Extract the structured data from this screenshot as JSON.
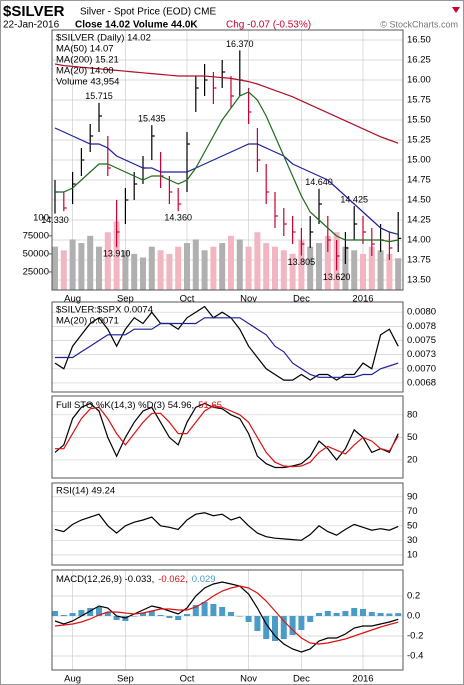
{
  "chart_data": [
    {
      "type": "ohlc",
      "title": "$SILVER",
      "subtitle": "Silver - Spot Price (EOD) CME",
      "date": "22-Jan-2016",
      "quote": "Close 14.02 Volume 44.0K",
      "change": "Chg -0.07 (-0.53%)",
      "credit": "© StockCharts.com",
      "categories": [
        null,
        null,
        "Aug",
        null,
        null,
        null,
        null,
        null,
        "Sep",
        null,
        null,
        null,
        null,
        null,
        null,
        "Oct",
        null,
        null,
        null,
        null,
        null,
        null,
        "Nov",
        null,
        null,
        null,
        null,
        null,
        "Dec",
        null,
        null,
        null,
        null,
        null,
        null,
        "2016",
        null,
        null,
        null,
        null
      ],
      "ylim": [
        13.375,
        16.625
      ],
      "yticks": [
        {
          "value": 13.5,
          "label": "13.50"
        },
        13.75,
        {
          "value": 14,
          "label": "14.00"
        },
        14.25,
        {
          "value": 14.5,
          "label": "14.50"
        },
        14.75,
        {
          "value": 15,
          "label": "15.00"
        },
        15.25,
        {
          "value": 15.5,
          "label": "15.50"
        },
        15.75,
        {
          "value": 16,
          "label": "16.00"
        },
        16.25,
        {
          "value": 16.5,
          "label": "16.50"
        }
      ],
      "y2lim": [
        0,
        360000
      ],
      "y2ticks": [
        25000,
        50000,
        75000,
        {
          "value": 100000,
          "label": "100"
        }
      ],
      "grid": true,
      "series": [
        {
          "name": "$SILVER (Daily) 14.02",
          "type": "ohlc",
          "color": "#000000",
          "down_color": "#cc0033",
          "high": [
            14.75,
            14.6,
            14.85,
            15.15,
            15.45,
            15.715,
            15.3,
            14.5,
            14.65,
            14.85,
            15.05,
            15.435,
            15.1,
            14.8,
            14.65,
            15.35,
            16.05,
            16.2,
            16.1,
            16.25,
            16.05,
            16.37,
            15.9,
            15.4,
            14.95,
            14.6,
            14.4,
            14.3,
            14.15,
            14.3,
            14.64,
            14.3,
            14.0,
            14.1,
            14.425,
            14.3,
            14.15,
            14.2,
            14.1,
            14.35
          ],
          "low": [
            14.33,
            14.36,
            14.45,
            14.8,
            15.1,
            15.35,
            14.8,
            13.91,
            14.2,
            14.5,
            14.7,
            15.0,
            14.65,
            14.45,
            14.36,
            14.6,
            15.6,
            15.8,
            15.7,
            15.9,
            15.65,
            15.8,
            15.45,
            14.85,
            14.45,
            14.15,
            14.05,
            13.95,
            13.805,
            13.9,
            14.2,
            13.85,
            13.62,
            13.7,
            14.0,
            13.95,
            13.8,
            13.85,
            13.75,
            13.85
          ],
          "close": [
            14.6,
            14.4,
            14.7,
            15.0,
            15.3,
            15.55,
            14.9,
            14.1,
            14.5,
            14.7,
            14.9,
            15.3,
            14.8,
            14.6,
            14.45,
            15.2,
            15.9,
            16.0,
            15.9,
            16.1,
            15.8,
            16.0,
            15.6,
            15.0,
            14.6,
            14.3,
            14.2,
            14.1,
            13.95,
            14.1,
            14.45,
            14.0,
            13.8,
            13.9,
            14.2,
            14.1,
            13.95,
            14.0,
            13.9,
            14.02
          ],
          "high_labels": [
            null,
            null,
            null,
            null,
            null,
            "15.715",
            null,
            null,
            null,
            null,
            null,
            "15.435",
            null,
            null,
            null,
            null,
            null,
            null,
            null,
            null,
            null,
            "16.370",
            null,
            null,
            null,
            null,
            null,
            null,
            null,
            null,
            "14.640",
            null,
            null,
            null,
            "14.425",
            null,
            null,
            null,
            null,
            null
          ],
          "low_labels": [
            "14.330",
            null,
            null,
            null,
            null,
            null,
            null,
            "13.910",
            null,
            null,
            null,
            null,
            null,
            null,
            "14.360",
            null,
            null,
            null,
            null,
            null,
            null,
            null,
            null,
            null,
            null,
            null,
            null,
            null,
            "13.805",
            null,
            null,
            null,
            "13.620",
            null,
            null,
            null,
            null,
            null,
            null,
            null
          ]
        },
        {
          "name": "MA(50) 14.07",
          "type": "line",
          "color": "#1f1f9a",
          "values": [
            15.4,
            15.35,
            15.3,
            15.25,
            15.2,
            15.2,
            15.15,
            15.05,
            15.0,
            14.95,
            14.9,
            14.9,
            14.85,
            14.85,
            14.85,
            14.85,
            14.9,
            14.95,
            15.0,
            15.05,
            15.1,
            15.15,
            15.2,
            15.2,
            15.15,
            15.1,
            15.05,
            14.95,
            14.9,
            14.85,
            14.8,
            14.75,
            14.65,
            14.55,
            14.45,
            14.35,
            14.25,
            14.15,
            14.1,
            14.07
          ]
        },
        {
          "name": "MA(200) 15.21",
          "type": "line",
          "color": "#b0102a",
          "values": [
            16.2,
            16.18,
            16.17,
            16.16,
            16.15,
            16.14,
            16.13,
            16.12,
            16.11,
            16.1,
            16.09,
            16.08,
            16.07,
            16.06,
            16.05,
            16.05,
            16.05,
            16.05,
            16.04,
            16.03,
            16.02,
            16.0,
            15.98,
            15.95,
            15.91,
            15.87,
            15.83,
            15.79,
            15.74,
            15.69,
            15.64,
            15.59,
            15.54,
            15.49,
            15.44,
            15.39,
            15.34,
            15.29,
            15.25,
            15.21
          ]
        },
        {
          "name": "MA(20) 14.00",
          "type": "line",
          "color": "#1e6b1e",
          "values": [
            14.6,
            14.6,
            14.65,
            14.75,
            14.85,
            14.95,
            14.95,
            14.9,
            14.85,
            14.8,
            14.75,
            14.8,
            14.8,
            14.75,
            14.7,
            14.75,
            14.9,
            15.1,
            15.3,
            15.5,
            15.65,
            15.8,
            15.85,
            15.75,
            15.55,
            15.3,
            15.05,
            14.8,
            14.55,
            14.35,
            14.25,
            14.15,
            14.05,
            14.0,
            14.0,
            14.0,
            14.0,
            14.0,
            13.98,
            14.0
          ]
        },
        {
          "name": "Volume 43,954",
          "type": "bar",
          "axis": "y2",
          "color": "#b0b0b0",
          "down_color": "#f2b6c2",
          "values": [
            60000,
            55000,
            70000,
            65000,
            75000,
            60000,
            80000,
            95000,
            55000,
            50000,
            45000,
            60000,
            55000,
            50000,
            60000,
            65000,
            70000,
            55000,
            60000,
            65000,
            75000,
            70000,
            60000,
            80000,
            65000,
            60000,
            55000,
            50000,
            70000,
            60000,
            65000,
            75000,
            80000,
            60000,
            55000,
            50000,
            60000,
            55000,
            50000,
            43954
          ]
        }
      ]
    },
    {
      "type": "line",
      "ylim": [
        0.00659,
        0.00818
      ],
      "yticks": [
        {
          "value": 0.00675,
          "label": "0.0068"
        },
        {
          "value": 0.007,
          "label": "0.0070"
        },
        {
          "value": 0.00725,
          "label": "0.0073"
        },
        0.0075,
        {
          "value": 0.00775,
          "label": "0.0078"
        },
        {
          "value": 0.008,
          "label": "0.0080"
        }
      ],
      "grid": true,
      "series": [
        {
          "name": "$SILVER:$SPX 0.0074",
          "type": "line",
          "color": "#000000",
          "values": [
            0.0071,
            0.007,
            0.0074,
            0.0076,
            0.0078,
            0.0079,
            0.0077,
            0.0074,
            0.0077,
            0.0079,
            0.0078,
            0.008,
            0.0078,
            0.0078,
            0.0077,
            0.0079,
            0.008,
            0.0081,
            0.0079,
            0.008,
            0.0079,
            0.0077,
            0.0074,
            0.0072,
            0.007,
            0.0069,
            0.0068,
            0.0068,
            0.0069,
            0.0068,
            0.0069,
            0.0069,
            0.0068,
            0.0069,
            0.0069,
            0.0071,
            0.007,
            0.0076,
            0.0077,
            0.0074
          ]
        },
        {
          "name": "MA(20) 0.0071",
          "type": "line",
          "color": "#1f1f9a",
          "values": [
            0.0072,
            0.0072,
            0.0072,
            0.0073,
            0.0074,
            0.0075,
            0.0076,
            0.0076,
            0.0076,
            0.0077,
            0.0077,
            0.0077,
            0.0078,
            0.0078,
            0.0078,
            0.0078,
            0.0078,
            0.0079,
            0.0079,
            0.0079,
            0.0079,
            0.0079,
            0.0078,
            0.0077,
            0.0076,
            0.0074,
            0.0073,
            0.0071,
            0.007,
            0.0069,
            0.00685,
            0.00685,
            0.00685,
            0.00685,
            0.00685,
            0.0069,
            0.0069,
            0.007,
            0.00705,
            0.0071
          ]
        }
      ]
    },
    {
      "type": "line",
      "ylim": [
        -4,
        105
      ],
      "yticks": [
        20,
        50,
        80
      ],
      "grid": true,
      "legend_layout": "inline",
      "series": [
        {
          "name": "Full STO %K(14,3) %D(3) 54.96,",
          "type": "line",
          "color": "#000000",
          "values": [
            30,
            40,
            75,
            90,
            95,
            85,
            50,
            25,
            50,
            70,
            85,
            90,
            70,
            50,
            40,
            70,
            90,
            95,
            90,
            88,
            80,
            75,
            55,
            25,
            15,
            10,
            10,
            12,
            15,
            25,
            45,
            35,
            20,
            35,
            60,
            50,
            30,
            35,
            30,
            54.96
          ]
        },
        {
          "name": "51.65",
          "type": "line",
          "color": "#dd1111",
          "values": [
            35,
            35,
            55,
            75,
            88,
            90,
            75,
            55,
            40,
            55,
            70,
            82,
            82,
            70,
            55,
            55,
            70,
            85,
            92,
            90,
            85,
            80,
            70,
            50,
            30,
            17,
            12,
            11,
            12,
            17,
            30,
            38,
            33,
            28,
            40,
            50,
            45,
            35,
            32,
            51.65
          ]
        }
      ]
    },
    {
      "type": "line",
      "ylim": [
        -4,
        109
      ],
      "yticks": [
        10,
        30,
        50,
        70,
        90
      ],
      "grid": true,
      "series": [
        {
          "name": "RSI(14) 49.24",
          "type": "line",
          "color": "#000000",
          "values": [
            45,
            42,
            52,
            58,
            62,
            66,
            50,
            40,
            50,
            55,
            58,
            62,
            50,
            48,
            45,
            58,
            66,
            68,
            64,
            66,
            58,
            62,
            50,
            40,
            35,
            33,
            32,
            31,
            30,
            38,
            50,
            42,
            37,
            45,
            52,
            48,
            44,
            46,
            44,
            49.24
          ]
        }
      ]
    },
    {
      "type": "line",
      "ylim": [
        -0.54,
        0.46
      ],
      "categories": [
        null,
        null,
        "Aug",
        null,
        null,
        null,
        null,
        null,
        "Sep",
        null,
        null,
        null,
        null,
        null,
        null,
        "Oct",
        null,
        null,
        null,
        null,
        null,
        null,
        "Nov",
        null,
        null,
        null,
        null,
        null,
        "Dec",
        null,
        null,
        null,
        null,
        null,
        null,
        "2016",
        null,
        null,
        null,
        null
      ],
      "yticks": [
        -0.4,
        -0.2,
        {
          "value": 0,
          "label": "0.0"
        },
        0.2
      ],
      "grid": true,
      "legend_layout": "inline",
      "series": [
        {
          "name": "MACD(12,26,9) -0.033,",
          "type": "line",
          "color": "#000000",
          "values": [
            -0.05,
            -0.08,
            -0.05,
            0.0,
            0.05,
            0.1,
            0.08,
            0.0,
            -0.02,
            0.02,
            0.06,
            0.1,
            0.08,
            0.05,
            0.02,
            0.08,
            0.2,
            0.28,
            0.32,
            0.34,
            0.32,
            0.3,
            0.22,
            0.08,
            -0.08,
            -0.2,
            -0.28,
            -0.33,
            -0.36,
            -0.33,
            -0.25,
            -0.22,
            -0.22,
            -0.18,
            -0.12,
            -0.1,
            -0.1,
            -0.08,
            -0.06,
            -0.033
          ]
        },
        {
          "name": "-0.062,",
          "type": "line",
          "color": "#dd1111",
          "values": [
            -0.1,
            -0.09,
            -0.08,
            -0.06,
            -0.03,
            0.01,
            0.04,
            0.04,
            0.03,
            0.02,
            0.03,
            0.05,
            0.07,
            0.07,
            0.06,
            0.06,
            0.09,
            0.14,
            0.2,
            0.25,
            0.28,
            0.3,
            0.28,
            0.23,
            0.15,
            0.05,
            -0.05,
            -0.14,
            -0.22,
            -0.27,
            -0.28,
            -0.27,
            -0.25,
            -0.23,
            -0.2,
            -0.17,
            -0.14,
            -0.11,
            -0.085,
            -0.062
          ]
        },
        {
          "name": "0.029",
          "type": "bar",
          "color": "#4a9cc8",
          "values": [
            0.05,
            0.01,
            0.03,
            0.06,
            0.08,
            0.09,
            0.04,
            -0.04,
            -0.05,
            0.0,
            0.03,
            0.05,
            0.01,
            -0.02,
            -0.04,
            0.02,
            0.11,
            0.14,
            0.12,
            0.09,
            0.04,
            0.0,
            -0.06,
            -0.15,
            -0.23,
            -0.25,
            -0.23,
            -0.19,
            -0.14,
            -0.06,
            0.03,
            0.05,
            0.03,
            0.05,
            0.08,
            0.07,
            0.04,
            0.03,
            0.025,
            0.029
          ]
        }
      ]
    }
  ]
}
